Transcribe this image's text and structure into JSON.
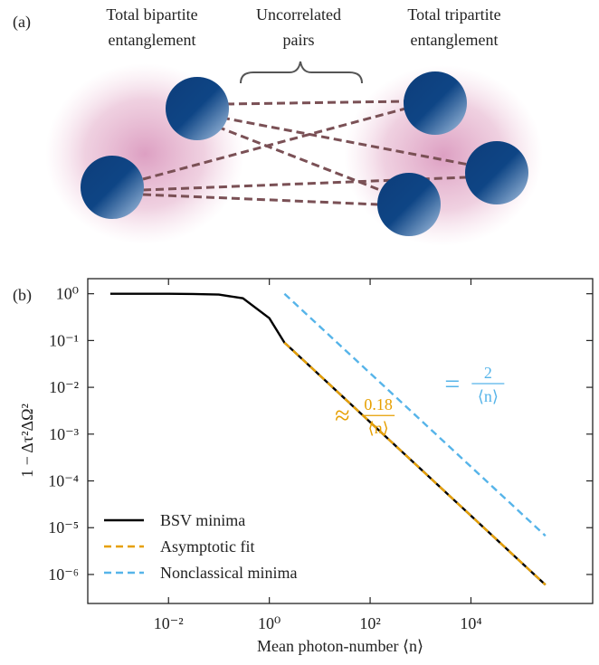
{
  "panel_a": {
    "label": "(a)",
    "left_caption": [
      "Total bipartite",
      "entanglement"
    ],
    "middle_caption": [
      "Uncorrelated",
      "pairs"
    ],
    "right_caption": [
      "Total tripartite",
      "entanglement"
    ]
  },
  "chart_data": {
    "type": "line",
    "panel_label": "(b)",
    "xlabel": "Mean photon-number ⟨n⟩",
    "ylabel": "1 − Δτ²ΔΩ²",
    "log_x": true,
    "log_y": true,
    "xlim": [
      0.00025,
      2600000
    ],
    "ylim": [
      2.4e-07,
      2.1
    ],
    "xticks": [
      {
        "value": 0.01,
        "label": "10⁻²"
      },
      {
        "value": 1,
        "label": "10⁰"
      },
      {
        "value": 100,
        "label": "10²"
      },
      {
        "value": 10000,
        "label": "10⁴"
      }
    ],
    "yticks": [
      {
        "value": 1,
        "label": "10⁰"
      },
      {
        "value": 0.1,
        "label": "10⁻¹"
      },
      {
        "value": 0.01,
        "label": "10⁻²"
      },
      {
        "value": 0.001,
        "label": "10⁻³"
      },
      {
        "value": 0.0001,
        "label": "10⁻⁴"
      },
      {
        "value": 1e-05,
        "label": "10⁻⁵"
      },
      {
        "value": 1e-06,
        "label": "10⁻⁶"
      }
    ],
    "legend": "lower-left",
    "series": [
      {
        "name": "BSV minima",
        "color": "#000000",
        "dash": false,
        "x": [
          0.0007,
          0.01,
          0.03,
          0.1,
          0.3,
          1,
          2,
          10,
          100,
          1000,
          10000,
          100000,
          300000
        ],
        "values": [
          1,
          1,
          0.99,
          0.96,
          0.8,
          0.3,
          0.09,
          0.018,
          0.0018,
          0.00018,
          1.8e-05,
          1.8e-06,
          6e-07
        ]
      },
      {
        "name": "Asymptotic fit",
        "color": "#e69f00",
        "dash": true,
        "x": [
          2,
          300000
        ],
        "values": [
          0.09,
          6e-07
        ]
      },
      {
        "name": "Nonclassical minima",
        "color": "#56b4e9",
        "dash": true,
        "x": [
          2,
          300000
        ],
        "values": [
          1,
          6.7e-06
        ]
      }
    ],
    "annotations": [
      {
        "sign": "≈",
        "numerator": "0.18",
        "denominator": "⟨n⟩",
        "color": "#e69f00",
        "x": 20,
        "y": 0.0025
      },
      {
        "sign": "=",
        "numerator": "2",
        "denominator": "⟨n⟩",
        "color": "#56b4e9",
        "x": 3000,
        "y": 0.012
      }
    ]
  }
}
